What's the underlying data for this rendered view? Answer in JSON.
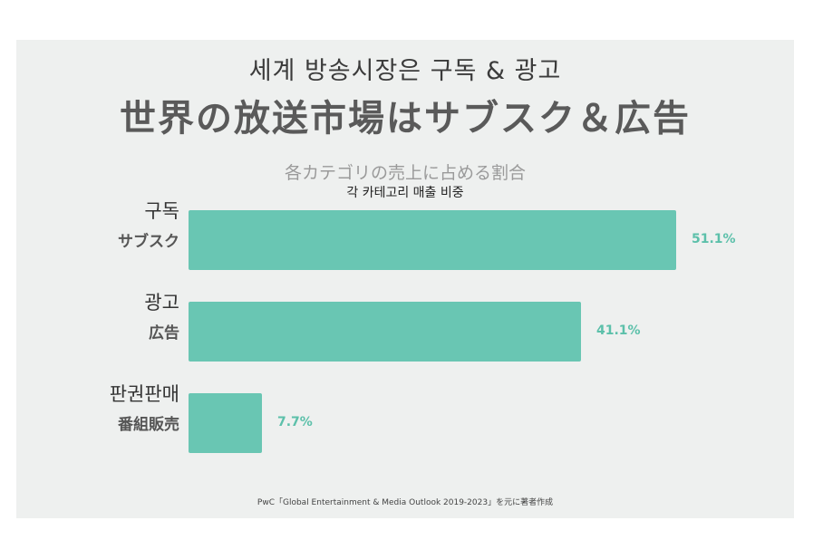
{
  "title_ko": "세계  방송시장은  구독 & 광고",
  "title_ja": "世界の放送市場はサブスク＆広告",
  "chart_data": {
    "type": "bar",
    "orientation": "horizontal",
    "title": "各カテゴリの売上に占める割合",
    "subtitle": "각 카테고리 매출 비중",
    "categories": [
      {
        "ko": "구독",
        "ja": "サブスク"
      },
      {
        "ko": "광고",
        "ja": "広告"
      },
      {
        "ko": "판권판매",
        "ja": "番組販売"
      }
    ],
    "values": [
      51.1,
      41.1,
      7.7
    ],
    "value_labels": [
      "51.1%",
      "41.1%",
      "7.7%"
    ],
    "unit": "%",
    "xlim": [
      0,
      51.1
    ],
    "grid": false,
    "legend": "none"
  },
  "source": "PwC「Global Entertainment & Media Outlook 2019-2023」を元に著者作成",
  "colors": {
    "bar": "#69c6b3",
    "value_label": "#5cc0aa",
    "panel_bg": "#eef0ef"
  }
}
